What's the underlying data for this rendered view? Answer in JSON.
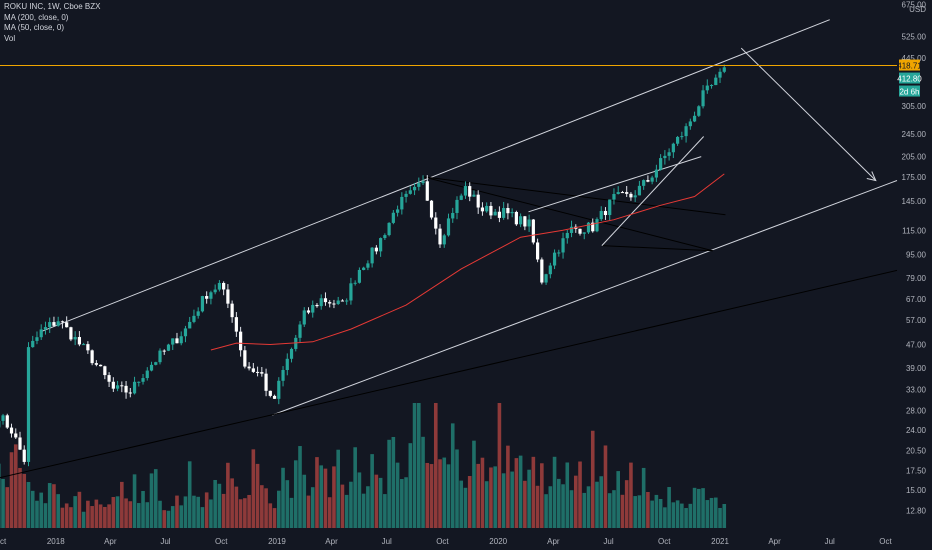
{
  "header": {
    "symbol_line": "ROKU INC, 1W, Cboe BZX",
    "ma200_label": "MA (200, close, 0)",
    "ma50_label": "MA (50, close, 0)",
    "vol_label": "Vol",
    "currency": "USD"
  },
  "price_tags": {
    "last_price": "418.71",
    "close_price": "412.80",
    "countdown": "2d 6h"
  },
  "colors": {
    "background": "#131722",
    "up": "#26a69a",
    "down": "#ef5350",
    "ma50": "#e53935",
    "drawing": "#d1d4dc",
    "trendline": "#000000",
    "price_line": "#f0a500",
    "axis_text": "#b2b5be",
    "vol_up": "#1f6f68",
    "vol_down": "#8e3a3a"
  },
  "chart_data": {
    "type": "candlestick",
    "title": "ROKU INC, 1W, Cboe BZX",
    "yscale": "log",
    "ylim": [
      10.8,
      700
    ],
    "y_ticks": [
      675,
      525,
      445,
      305,
      245,
      205,
      175,
      145,
      115,
      95,
      79,
      67,
      57,
      47,
      39,
      33,
      28,
      24,
      20.5,
      17.5,
      15,
      12.8
    ],
    "y_tick_labels": [
      "675.00",
      "525.00",
      "445.00",
      "305.00",
      "245.00",
      "205.00",
      "175.00",
      "145.00",
      "115.00",
      "95.00",
      "79.00",
      "67.00",
      "57.00",
      "47.00",
      "39.00",
      "33.00",
      "28.00",
      "24.00",
      "20.50",
      "17.50",
      "15.00",
      "12.80"
    ],
    "xlim": [
      "2017-10-01",
      "2021-10-20"
    ],
    "x_ticks": [
      "2017-10-01",
      "2018-01-01",
      "2018-04-01",
      "2018-07-01",
      "2018-10-01",
      "2019-01-01",
      "2019-04-01",
      "2019-07-01",
      "2019-10-01",
      "2020-01-01",
      "2020-04-01",
      "2020-07-01",
      "2020-10-01",
      "2021-01-01",
      "2021-04-01",
      "2021-07-01",
      "2021-10-01"
    ],
    "x_tick_labels": [
      "Oct",
      "2018",
      "Apr",
      "Jul",
      "Oct",
      "2019",
      "Apr",
      "Jul",
      "Oct",
      "2020",
      "Apr",
      "Jul",
      "Oct",
      "2021",
      "Apr",
      "Jul",
      "Oct"
    ],
    "series": [
      {
        "name": "ROKU",
        "kind": "price",
        "points": [
          {
            "date": "2017-09-29",
            "close": 27.0
          },
          {
            "date": "2017-10-20",
            "close": 24.0
          },
          {
            "date": "2017-11-10",
            "close": 19.0
          },
          {
            "date": "2017-11-17",
            "close": 45.0
          },
          {
            "date": "2017-12-08",
            "close": 52.0
          },
          {
            "date": "2018-01-05",
            "close": 57.0
          },
          {
            "date": "2018-02-02",
            "close": 49.0
          },
          {
            "date": "2018-03-02",
            "close": 42.0
          },
          {
            "date": "2018-04-06",
            "close": 33.0
          },
          {
            "date": "2018-05-04",
            "close": 32.5
          },
          {
            "date": "2018-06-01",
            "close": 39.0
          },
          {
            "date": "2018-07-06",
            "close": 46.0
          },
          {
            "date": "2018-08-03",
            "close": 53.0
          },
          {
            "date": "2018-09-07",
            "close": 70.0
          },
          {
            "date": "2018-09-28",
            "close": 75.0
          },
          {
            "date": "2018-10-19",
            "close": 60.0
          },
          {
            "date": "2018-11-09",
            "close": 40.0
          },
          {
            "date": "2018-12-07",
            "close": 37.0
          },
          {
            "date": "2018-12-24",
            "close": 29.0
          },
          {
            "date": "2019-01-11",
            "close": 38.0
          },
          {
            "date": "2019-02-15",
            "close": 59.0
          },
          {
            "date": "2019-03-15",
            "close": 67.0
          },
          {
            "date": "2019-04-19",
            "close": 64.0
          },
          {
            "date": "2019-05-17",
            "close": 85.0
          },
          {
            "date": "2019-06-14",
            "close": 100.0
          },
          {
            "date": "2019-07-19",
            "close": 140.0
          },
          {
            "date": "2019-08-30",
            "close": 165.0
          },
          {
            "date": "2019-09-27",
            "close": 107.0
          },
          {
            "date": "2019-10-18",
            "close": 135.0
          },
          {
            "date": "2019-11-08",
            "close": 160.0
          },
          {
            "date": "2019-12-06",
            "close": 135.0
          },
          {
            "date": "2020-01-10",
            "close": 132.0
          },
          {
            "date": "2020-02-21",
            "close": 120.0
          },
          {
            "date": "2020-03-13",
            "close": 78.0
          },
          {
            "date": "2020-04-03",
            "close": 96.0
          },
          {
            "date": "2020-05-01",
            "close": 116.0
          },
          {
            "date": "2020-06-05",
            "close": 118.0
          },
          {
            "date": "2020-07-10",
            "close": 148.0
          },
          {
            "date": "2020-08-07",
            "close": 150.0
          },
          {
            "date": "2020-09-04",
            "close": 170.0
          },
          {
            "date": "2020-10-09",
            "close": 215.0
          },
          {
            "date": "2020-11-06",
            "close": 255.0
          },
          {
            "date": "2020-12-04",
            "close": 330.0
          },
          {
            "date": "2020-12-31",
            "close": 380.0
          },
          {
            "date": "2021-01-08",
            "close": 412.8
          }
        ]
      },
      {
        "name": "MA (50, close, 0)",
        "kind": "ma",
        "points": [
          {
            "date": "2018-09-14",
            "close": 45.0
          },
          {
            "date": "2018-10-26",
            "close": 47.5
          },
          {
            "date": "2018-12-21",
            "close": 47.0
          },
          {
            "date": "2019-03-01",
            "close": 48.0
          },
          {
            "date": "2019-05-03",
            "close": 53.0
          },
          {
            "date": "2019-08-02",
            "close": 64.0
          },
          {
            "date": "2019-11-01",
            "close": 85.0
          },
          {
            "date": "2020-02-07",
            "close": 109.0
          },
          {
            "date": "2020-04-17",
            "close": 115.0
          },
          {
            "date": "2020-07-10",
            "close": 125.0
          },
          {
            "date": "2020-09-25",
            "close": 140.0
          },
          {
            "date": "2020-11-20",
            "close": 150.0
          },
          {
            "date": "2021-01-08",
            "close": 179.0
          }
        ]
      }
    ],
    "volume": [
      22,
      15,
      27,
      18,
      20,
      14,
      12,
      9,
      16,
      11,
      8,
      10,
      13,
      7,
      9,
      12,
      8,
      11,
      10,
      14,
      9,
      16,
      12,
      9,
      18,
      13,
      8,
      10,
      15,
      11,
      20,
      14,
      9,
      12,
      18,
      13,
      22,
      16,
      11,
      14,
      25,
      19,
      12,
      9,
      16,
      21,
      14,
      28,
      19,
      12,
      33,
      24,
      15,
      30,
      20,
      14,
      26,
      18,
      13,
      22,
      17,
      12,
      35,
      24,
      18,
      28,
      44,
      30,
      20,
      38,
      26,
      19,
      31,
      22,
      16,
      29,
      21,
      15,
      26,
      40,
      25,
      18,
      24,
      17,
      22,
      15,
      20,
      14,
      27,
      19,
      23,
      16,
      21,
      14,
      30,
      21,
      25,
      17,
      22,
      16,
      20,
      14,
      18,
      12,
      15,
      10,
      13,
      9,
      11,
      8,
      12,
      14,
      9,
      10,
      7,
      11
    ]
  },
  "drawings": {
    "channel": [
      {
        "from": [
          "2017-12-08",
          52
        ],
        "to": [
          "2021-07-01",
          600
        ]
      },
      {
        "from": [
          "2018-12-24",
          27
        ],
        "to": [
          "2021-10-20",
          170
        ]
      }
    ],
    "lower_trendline": {
      "from": [
        "2017-09-29",
        16.5
      ],
      "to": [
        "2021-10-20",
        84
      ]
    },
    "triangle_lines": [
      {
        "from": [
          "2019-08-30",
          175
        ],
        "to": [
          "2021-01-10",
          130
        ]
      },
      {
        "from": [
          "2019-08-30",
          175
        ],
        "to": [
          "2020-12-20",
          98
        ]
      },
      {
        "from": [
          "2020-06-20",
          102
        ],
        "to": [
          "2020-12-20",
          98
        ]
      }
    ],
    "wedge_lines": [
      {
        "from": [
          "2020-02-20",
          133
        ],
        "to": [
          "2020-12-01",
          205
        ]
      },
      {
        "from": [
          "2020-06-20",
          102
        ],
        "to": [
          "2020-12-05",
          240
        ]
      }
    ],
    "projection_arrow": {
      "from": [
        "2021-02-05",
        480
      ],
      "to": [
        "2021-09-15",
        170
      ]
    }
  }
}
